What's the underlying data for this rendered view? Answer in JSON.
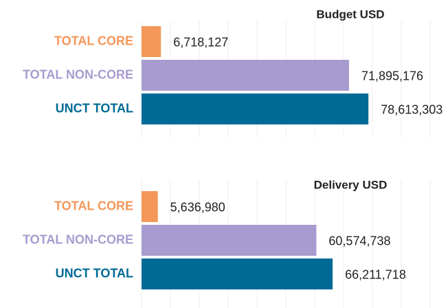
{
  "chart_data": [
    {
      "type": "bar",
      "orientation": "horizontal",
      "title": "Budget USD",
      "categories": [
        "TOTAL CORE",
        "TOTAL NON-CORE",
        "UNCT TOTAL"
      ],
      "values": [
        6718127,
        71895176,
        78613303
      ],
      "value_labels": [
        "6,718,127",
        "71,895,176",
        "78,613,303"
      ],
      "colors": [
        "#f4975a",
        "#a89bcf",
        "#006a96"
      ],
      "xlim": [
        0,
        100000000
      ],
      "xticks": [
        0,
        10000000,
        20000000,
        30000000,
        40000000,
        50000000,
        60000000,
        70000000,
        80000000,
        90000000,
        100000000
      ],
      "grid": true
    },
    {
      "type": "bar",
      "orientation": "horizontal",
      "title": "Delivery USD",
      "categories": [
        "TOTAL CORE",
        "TOTAL NON-CORE",
        "UNCT TOTAL"
      ],
      "values": [
        5636980,
        60574738,
        66211718
      ],
      "value_labels": [
        "5,636,980",
        "60,574,738",
        "66,211,718"
      ],
      "colors": [
        "#f4975a",
        "#a89bcf",
        "#006a96"
      ],
      "xlim": [
        0,
        100000000
      ],
      "xticks": [
        0,
        10000000,
        20000000,
        30000000,
        40000000,
        50000000,
        60000000,
        70000000,
        80000000,
        90000000,
        100000000
      ],
      "grid": true
    }
  ]
}
